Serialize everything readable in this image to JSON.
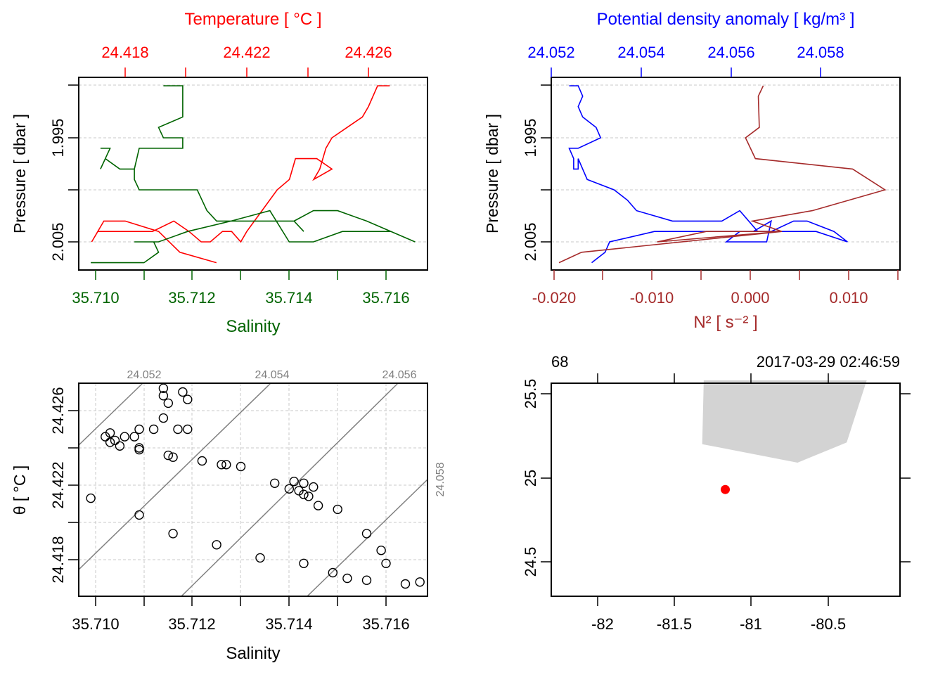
{
  "colors": {
    "temperature": "#ff0000",
    "salinity": "#006400",
    "density": "#0000ff",
    "n2": "#a52a2a",
    "isopycnal": "#808080",
    "coast": "#d3d3d3",
    "station": "#ff0000",
    "grid": "#c8c8c8"
  },
  "chart_data": [
    {
      "id": "ts-profile",
      "type": "line",
      "ylabel": "Pressure [ dbar ]",
      "yticks": [
        "1.995",
        "2.005"
      ],
      "top_axis": {
        "label": "Temperature [ °C ]",
        "ticks": [
          "24.418",
          "24.422",
          "24.426"
        ]
      },
      "bottom_axis": {
        "label": "Salinity",
        "ticks": [
          "35.710",
          "35.712",
          "35.714",
          "35.716"
        ]
      },
      "series": [
        {
          "points": [
            [
              24.4267,
              1.99
            ],
            [
              24.4263,
              1.99
            ],
            [
              24.426,
              1.992
            ],
            [
              24.4258,
              1.993
            ],
            [
              24.4253,
              1.994
            ],
            [
              24.4248,
              1.995
            ],
            [
              24.4246,
              1.996
            ],
            [
              24.4244,
              1.998
            ],
            [
              24.4242,
              1.999
            ],
            [
              24.4248,
              1.998
            ],
            [
              24.4243,
              1.997
            ],
            [
              24.4236,
              1.997
            ],
            [
              24.4234,
              1.999
            ],
            [
              24.423,
              2.0
            ],
            [
              24.4225,
              2.002
            ],
            [
              24.422,
              2.004
            ],
            [
              24.4218,
              2.005
            ],
            [
              24.4215,
              2.004
            ],
            [
              24.4212,
              2.004
            ],
            [
              24.4208,
              2.005
            ],
            [
              24.4205,
              2.005
            ],
            [
              24.4201,
              2.004
            ],
            [
              24.4196,
              2.003
            ],
            [
              24.4189,
              2.004
            ],
            [
              24.4177,
              2.004
            ],
            [
              24.4171,
              2.004
            ],
            [
              24.4169,
              2.005
            ],
            [
              24.4173,
              2.003
            ],
            [
              24.418,
              2.003
            ],
            [
              24.4191,
              2.004
            ],
            [
              24.4198,
              2.006
            ],
            [
              24.421,
              2.007
            ]
          ]
        },
        {
          "points": [
            [
              35.7114,
              1.99
            ],
            [
              35.7118,
              1.99
            ],
            [
              35.7118,
              1.993
            ],
            [
              35.7113,
              1.994
            ],
            [
              35.7114,
              1.995
            ],
            [
              35.7118,
              1.995
            ],
            [
              35.7118,
              1.996
            ],
            [
              35.7113,
              1.996
            ],
            [
              35.7109,
              1.996
            ],
            [
              35.7108,
              1.998
            ],
            [
              35.7108,
              1.999
            ],
            [
              35.7109,
              2.0
            ],
            [
              35.7116,
              2.0
            ],
            [
              35.7121,
              2.0
            ],
            [
              35.7123,
              2.002
            ],
            [
              35.7125,
              2.003
            ],
            [
              35.713,
              2.003
            ],
            [
              35.7137,
              2.003
            ],
            [
              35.7141,
              2.003
            ],
            [
              35.7143,
              2.004
            ],
            [
              35.7141,
              2.003
            ],
            [
              35.7145,
              2.002
            ],
            [
              35.715,
              2.002
            ],
            [
              35.7156,
              2.003
            ],
            [
              35.7166,
              2.005
            ],
            [
              35.7161,
              2.004
            ],
            [
              35.7155,
              2.004
            ],
            [
              35.7151,
              2.004
            ],
            [
              35.7145,
              2.005
            ],
            [
              35.714,
              2.005
            ],
            [
              35.7136,
              2.002
            ],
            [
              35.7128,
              2.003
            ],
            [
              35.7119,
              2.004
            ],
            [
              35.7113,
              2.005
            ],
            [
              35.711,
              2.005
            ],
            [
              35.7108,
              2.005
            ],
            [
              35.711,
              2.005
            ],
            [
              35.7112,
              2.005
            ],
            [
              35.7112,
              2.005
            ],
            [
              35.7113,
              2.006
            ],
            [
              35.711,
              2.007
            ],
            [
              35.7099,
              2.007
            ]
          ]
        },
        {
          "points": [
            [
              35.7101,
              1.996
            ],
            [
              35.7103,
              1.996
            ],
            [
              35.7101,
              1.998
            ],
            [
              35.7102,
              1.997
            ],
            [
              35.7105,
              1.998
            ],
            [
              35.7108,
              1.998
            ]
          ]
        }
      ]
    },
    {
      "id": "density-n2-profile",
      "type": "line",
      "ylabel": "Pressure [ dbar ]",
      "yticks": [
        "1.995",
        "2.005"
      ],
      "top_axis": {
        "label": "Potential density anomaly [ kg/m³ ]",
        "ticks": [
          "24.052",
          "24.054",
          "24.056",
          "24.058"
        ]
      },
      "bottom_axis": {
        "label": "N² [ s⁻² ]",
        "ticks": [
          "-0.020",
          "-0.010",
          "0.000",
          "0.010"
        ]
      },
      "series": [
        {
          "points": [
            [
              24.0524,
              1.99
            ],
            [
              24.0526,
              1.99
            ],
            [
              24.0527,
              1.991
            ],
            [
              24.0526,
              1.992
            ],
            [
              24.0527,
              1.993
            ],
            [
              24.053,
              1.994
            ],
            [
              24.0531,
              1.995
            ],
            [
              24.0526,
              1.996
            ],
            [
              24.0524,
              1.996
            ],
            [
              24.0525,
              1.997
            ],
            [
              24.0525,
              1.998
            ],
            [
              24.0526,
              1.998
            ],
            [
              24.0526,
              1.997
            ],
            [
              24.0527,
              1.998
            ],
            [
              24.0528,
              1.999
            ],
            [
              24.0534,
              2.0
            ],
            [
              24.0537,
              2.001
            ],
            [
              24.0539,
              2.002
            ],
            [
              24.0547,
              2.003
            ],
            [
              24.0553,
              2.003
            ],
            [
              24.0558,
              2.003
            ],
            [
              24.0562,
              2.002
            ],
            [
              24.0566,
              2.004
            ],
            [
              24.0572,
              2.004
            ],
            [
              24.0579,
              2.004
            ],
            [
              24.0586,
              2.005
            ],
            [
              24.0583,
              2.004
            ],
            [
              24.0577,
              2.003
            ],
            [
              24.0574,
              2.003
            ],
            [
              24.0569,
              2.004
            ],
            [
              24.0562,
              2.004
            ],
            [
              24.0559,
              2.005
            ],
            [
              24.0563,
              2.005
            ],
            [
              24.0568,
              2.005
            ],
            [
              24.0569,
              2.003
            ],
            [
              24.0565,
              2.004
            ],
            [
              24.0556,
              2.004
            ],
            [
              24.0546,
              2.004
            ],
            [
              24.0543,
              2.004
            ],
            [
              24.0533,
              2.005
            ],
            [
              24.0532,
              2.006
            ],
            [
              24.0529,
              2.007
            ]
          ]
        },
        {
          "points": [
            [
              0.0013,
              1.99
            ],
            [
              0.0008,
              1.991
            ],
            [
              0.0009,
              1.994
            ],
            [
              -0.0005,
              1.995
            ],
            [
              0.0005,
              1.997
            ],
            [
              0.0104,
              1.998
            ],
            [
              0.0137,
              2.0
            ],
            [
              0.0063,
              2.002
            ],
            [
              0.0002,
              2.003
            ],
            [
              0.0032,
              2.004
            ],
            [
              -0.0045,
              2.004
            ],
            [
              -0.0095,
              2.005
            ],
            [
              0.0032,
              2.004
            ],
            [
              -0.0172,
              2.006
            ],
            [
              -0.0195,
              2.007
            ]
          ]
        }
      ]
    },
    {
      "id": "ts-diagram",
      "type": "scatter",
      "ylabel": "θ [ °C ]",
      "xlabel": "Salinity",
      "yticks": [
        "24.418",
        "24.422",
        "24.426"
      ],
      "xticks": [
        "35.710",
        "35.712",
        "35.714",
        "35.716"
      ],
      "isopycnal_labels": [
        "24.052",
        "24.054",
        "24.056",
        "24.058"
      ],
      "points": [
        [
          35.7114,
          24.4272
        ],
        [
          35.7118,
          24.427
        ],
        [
          35.7114,
          24.4268
        ],
        [
          35.7119,
          24.4266
        ],
        [
          35.7115,
          24.4264
        ],
        [
          35.7114,
          24.4256
        ],
        [
          35.7119,
          24.425
        ],
        [
          35.7109,
          24.425
        ],
        [
          35.7112,
          24.425
        ],
        [
          35.7117,
          24.425
        ],
        [
          35.7103,
          24.4248
        ],
        [
          35.7102,
          24.4246
        ],
        [
          35.7106,
          24.4246
        ],
        [
          35.7108,
          24.4246
        ],
        [
          35.7103,
          24.4243
        ],
        [
          35.7104,
          24.4244
        ],
        [
          35.7105,
          24.4241
        ],
        [
          35.7109,
          24.424
        ],
        [
          35.7109,
          24.4239
        ],
        [
          35.7115,
          24.4236
        ],
        [
          35.7116,
          24.4235
        ],
        [
          35.7122,
          24.4233
        ],
        [
          35.7126,
          24.4231
        ],
        [
          35.7127,
          24.4231
        ],
        [
          35.713,
          24.423
        ],
        [
          35.7137,
          24.4221
        ],
        [
          35.7141,
          24.4222
        ],
        [
          35.7143,
          24.4221
        ],
        [
          35.7145,
          24.4219
        ],
        [
          35.714,
          24.4218
        ],
        [
          35.7142,
          24.4217
        ],
        [
          35.7143,
          24.4215
        ],
        [
          35.7144,
          24.4214
        ],
        [
          35.7099,
          24.4213
        ],
        [
          35.7146,
          24.4209
        ],
        [
          35.715,
          24.4207
        ],
        [
          35.7109,
          24.4204
        ],
        [
          35.7156,
          24.4194
        ],
        [
          35.7116,
          24.4194
        ],
        [
          35.7125,
          24.4188
        ],
        [
          35.7159,
          24.4185
        ],
        [
          35.7134,
          24.4181
        ],
        [
          35.716,
          24.4178
        ],
        [
          35.7143,
          24.4178
        ],
        [
          35.7149,
          24.4173
        ],
        [
          35.7152,
          24.417
        ],
        [
          35.7156,
          24.4169
        ],
        [
          35.7167,
          24.4168
        ],
        [
          35.7164,
          24.4167
        ]
      ]
    },
    {
      "id": "map",
      "type": "scatter",
      "xticks": [
        "-82",
        "-81.5",
        "-81",
        "-80.5"
      ],
      "yticks": [
        "24.5",
        "25",
        "25.5"
      ],
      "station": {
        "lon": -81.17,
        "lat": 24.93
      },
      "top_left_label": "68",
      "top_right_label": "2017-03-29 02:46:59",
      "land": [
        [
          -81.31,
          25.58
        ],
        [
          -80.25,
          25.58
        ],
        [
          -80.38,
          25.21
        ],
        [
          -80.7,
          25.09
        ],
        [
          -81.32,
          25.2
        ]
      ]
    }
  ]
}
